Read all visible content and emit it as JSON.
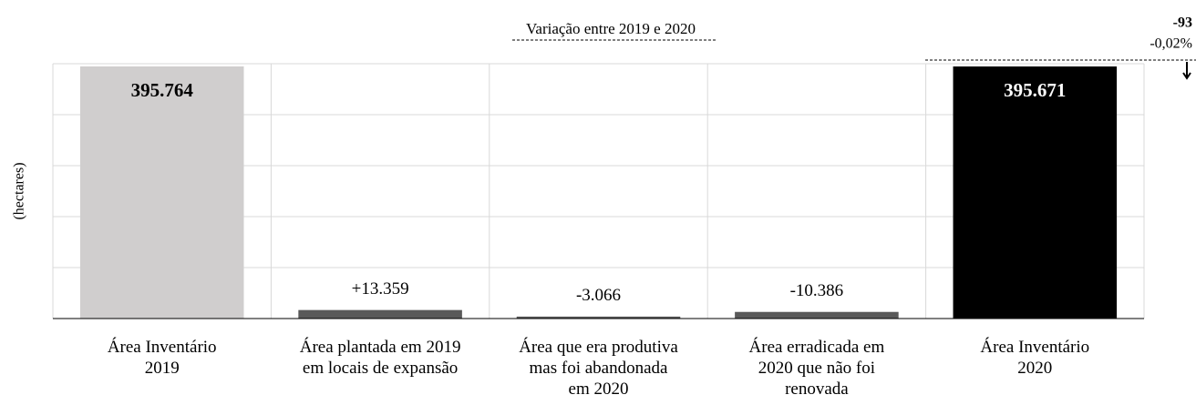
{
  "chart_data": {
    "type": "bar",
    "title": "Variação entre 2019 e 2020",
    "y_label": "(hectares)",
    "categories": [
      "Área Inventário\n2019",
      "Área plantada em 2019\nem locais de expansão",
      "Área que era produtiva\nmas foi abandonada\nem 2020",
      "Área erradicada em\n2020 que não foi\nrenovada",
      "Área Inventário\n2020"
    ],
    "values": [
      395764,
      13359,
      -3066,
      -10386,
      395671
    ],
    "value_labels": [
      "395.764",
      "+13.359",
      "-3.066",
      "-10.386",
      "395.671"
    ],
    "colors": [
      "#d0cece",
      "#595959",
      "#595959",
      "#595959",
      "#000000"
    ],
    "ylim": [
      0,
      400000
    ],
    "yticks": [
      0,
      80000,
      160000,
      240000,
      320000,
      400000
    ],
    "grid": true,
    "annotations": [
      "-93",
      "-0,02%"
    ]
  }
}
